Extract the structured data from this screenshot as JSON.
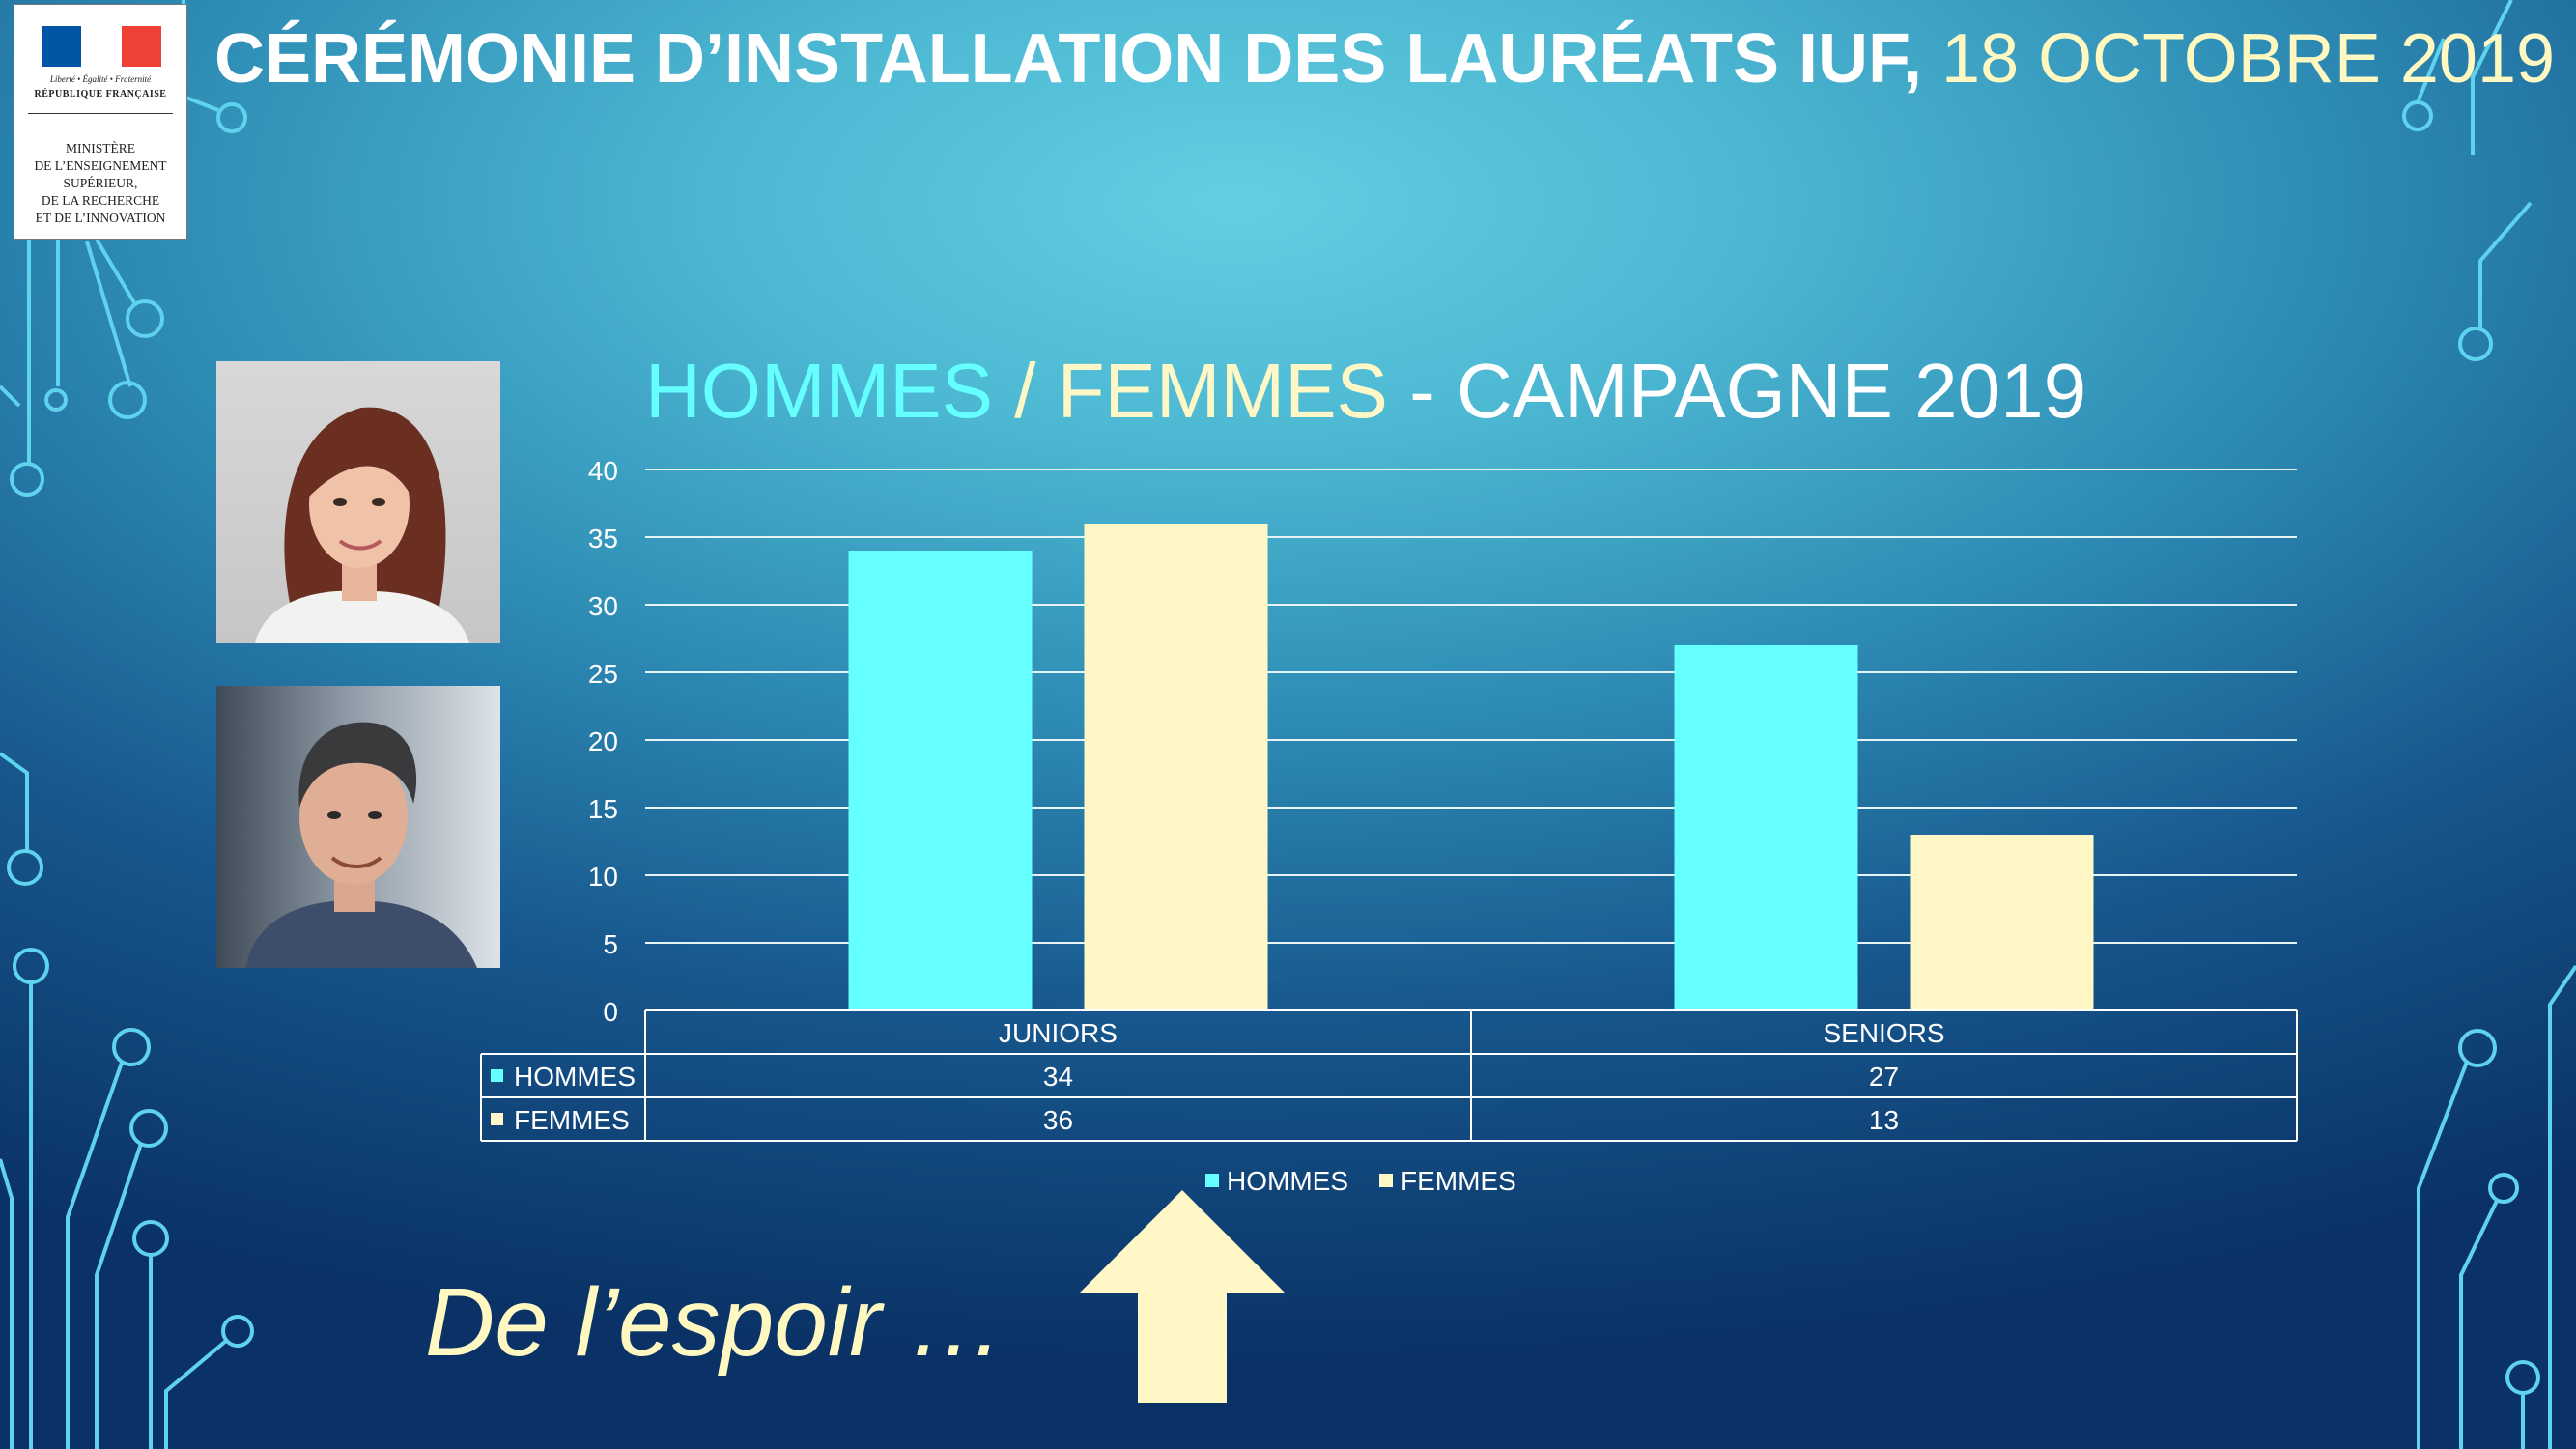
{
  "header": {
    "title": "CÉRÉMONIE D’INSTALLATION DES LAURÉATS IUF,",
    "date": "18 OCTOBRE 2019"
  },
  "logo": {
    "motto": "Liberté • Égalité • Fraternité",
    "republic": "RÉPUBLIQUE FRANÇAISE",
    "ministry": "MINISTÈRE\nDE L’ENSEIGNEMENT\nSUPÉRIEUR,\nDE LA RECHERCHE\nET DE L’INNOVATION",
    "flag_colors": [
      "#0055a4",
      "#ffffff",
      "#ef4135"
    ]
  },
  "colors": {
    "hommes": "#66ffff",
    "femmes": "#fff8c6",
    "white": "#ffffff",
    "grid": "#e6f4f8"
  },
  "chart_data": {
    "type": "bar",
    "title_parts": [
      "HOMMES",
      " / ",
      "FEMMES",
      " - CAMPAGNE 2019"
    ],
    "categories": [
      "JUNIORS",
      "SENIORS"
    ],
    "series": [
      {
        "name": "HOMMES",
        "values": [
          34,
          27
        ],
        "color": "#66ffff"
      },
      {
        "name": "FEMMES",
        "values": [
          36,
          13
        ],
        "color": "#fff8c6"
      }
    ],
    "ylim": [
      0,
      40
    ],
    "yticks": [
      0,
      5,
      10,
      15,
      20,
      25,
      30,
      35,
      40
    ],
    "grid": true,
    "legend": "bottom",
    "data_table": true
  },
  "slogan": "De l’espoir …",
  "decor": {
    "photos": [
      "woman-portrait",
      "man-portrait"
    ],
    "arrow": "up-arrow"
  }
}
